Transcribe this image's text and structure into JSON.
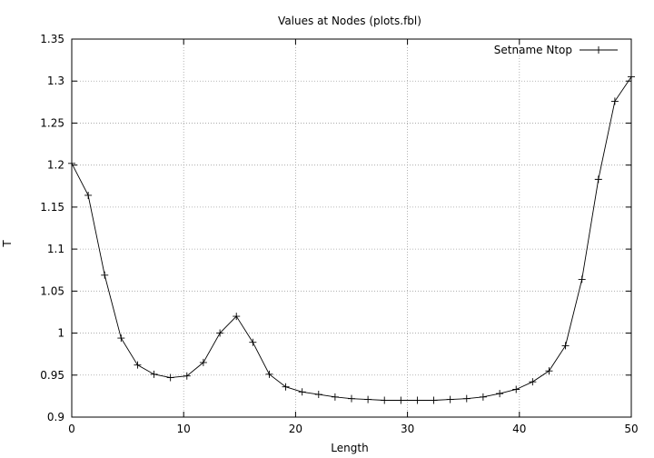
{
  "chart_data": {
    "type": "line",
    "title": "Values at Nodes (plots.fbl)",
    "xlabel": "Length",
    "ylabel": "T",
    "xlim": [
      0,
      50
    ],
    "ylim": [
      0.9,
      1.35
    ],
    "xticks": [
      0,
      10,
      20,
      30,
      40,
      50
    ],
    "xtick_labels": [
      "0",
      "10",
      "20",
      "30",
      "40",
      "50"
    ],
    "yticks": [
      0.9,
      0.95,
      1.0,
      1.05,
      1.1,
      1.15,
      1.2,
      1.25,
      1.3,
      1.35
    ],
    "ytick_labels": [
      "0.9",
      "0.95",
      "1",
      "1.05",
      "1.1",
      "1.15",
      "1.2",
      "1.25",
      "1.3",
      "1.35"
    ],
    "grid": true,
    "legend_position": "top-right",
    "series": [
      {
        "name": "Setname Ntop",
        "color": "#000000",
        "marker": "plus",
        "x": [
          0,
          1.47,
          2.94,
          4.41,
          5.88,
          7.35,
          8.82,
          10.29,
          11.76,
          13.24,
          14.71,
          16.18,
          17.65,
          19.12,
          20.59,
          22.06,
          23.53,
          25.0,
          26.47,
          27.94,
          29.41,
          30.88,
          32.35,
          33.82,
          35.29,
          36.76,
          38.24,
          39.71,
          41.18,
          42.65,
          44.12,
          45.59,
          47.06,
          48.53,
          50.0
        ],
        "y": [
          1.202,
          1.164,
          1.069,
          0.994,
          0.962,
          0.951,
          0.947,
          0.949,
          0.965,
          1.0,
          1.02,
          0.989,
          0.951,
          0.936,
          0.93,
          0.927,
          0.924,
          0.922,
          0.921,
          0.92,
          0.92,
          0.92,
          0.92,
          0.921,
          0.922,
          0.924,
          0.928,
          0.933,
          0.942,
          0.955,
          0.985,
          1.064,
          1.183,
          1.276,
          1.305
        ]
      }
    ]
  }
}
